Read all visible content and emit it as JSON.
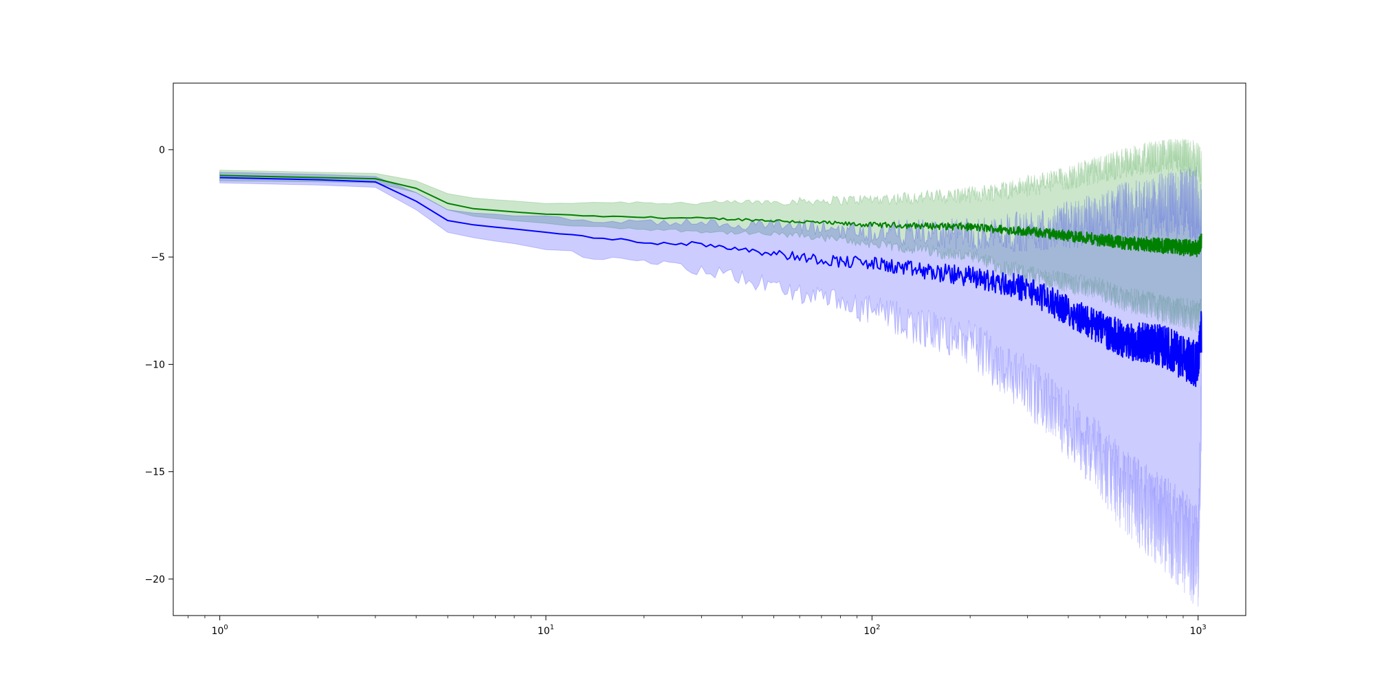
{
  "chart_data": {
    "type": "line",
    "title": "",
    "xlabel": "",
    "ylabel": "",
    "xscale": "log",
    "xlim": [
      0.72,
      1400
    ],
    "ylim": [
      -21.7,
      3.1
    ],
    "grid": false,
    "x_ticks": [
      {
        "value": 1,
        "base": "10",
        "exp": "0"
      },
      {
        "value": 10,
        "base": "10",
        "exp": "1"
      },
      {
        "value": 100,
        "base": "10",
        "exp": "2"
      },
      {
        "value": 1000,
        "base": "10",
        "exp": "3"
      }
    ],
    "y_ticks": [
      {
        "value": 0,
        "label": "0"
      },
      {
        "value": -5,
        "label": "−5"
      },
      {
        "value": -10,
        "label": "−10"
      },
      {
        "value": -15,
        "label": "−15"
      },
      {
        "value": -20,
        "label": "−20"
      }
    ],
    "series": [
      {
        "color": "#008000",
        "band_color": "#008000",
        "band_opacity": 0.2,
        "x": [
          1,
          2,
          3,
          4,
          5,
          6,
          8,
          10,
          14,
          20,
          30,
          40,
          60,
          80,
          100,
          150,
          200,
          300,
          400,
          500,
          600,
          700,
          800,
          900,
          1000,
          1024
        ],
        "mean": [
          -1.2,
          -1.3,
          -1.35,
          -1.8,
          -2.5,
          -2.75,
          -2.9,
          -3.0,
          -3.1,
          -3.15,
          -3.2,
          -3.25,
          -3.35,
          -3.45,
          -3.5,
          -3.55,
          -3.6,
          -3.8,
          -4.0,
          -4.2,
          -4.35,
          -4.4,
          -4.5,
          -4.55,
          -4.6,
          -4.2
        ],
        "lower": [
          -1.45,
          -1.5,
          -1.55,
          -2.0,
          -2.8,
          -3.1,
          -3.3,
          -3.45,
          -3.6,
          -3.7,
          -3.8,
          -3.9,
          -4.0,
          -4.2,
          -4.4,
          -4.7,
          -5.0,
          -5.8,
          -6.2,
          -6.5,
          -7.0,
          -7.2,
          -7.5,
          -7.6,
          -7.8,
          -7.5
        ],
        "upper": [
          -0.95,
          -1.05,
          -1.1,
          -1.45,
          -2.05,
          -2.25,
          -2.4,
          -2.5,
          -2.45,
          -2.45,
          -2.5,
          -2.45,
          -2.4,
          -2.35,
          -2.3,
          -2.2,
          -2.1,
          -1.7,
          -1.3,
          -0.9,
          -0.6,
          -0.4,
          -0.3,
          -0.3,
          -0.5,
          -0.8
        ]
      },
      {
        "color": "#0000ff",
        "band_color": "#0000ff",
        "band_opacity": 0.2,
        "x": [
          1,
          2,
          3,
          4,
          5,
          6,
          8,
          10,
          14,
          20,
          30,
          40,
          60,
          80,
          100,
          150,
          200,
          300,
          400,
          500,
          600,
          700,
          800,
          900,
          1000,
          1024
        ],
        "mean": [
          -1.3,
          -1.4,
          -1.5,
          -2.4,
          -3.3,
          -3.5,
          -3.7,
          -3.85,
          -4.1,
          -4.3,
          -4.4,
          -4.6,
          -5.0,
          -5.2,
          -5.3,
          -5.7,
          -5.9,
          -6.5,
          -7.5,
          -8.3,
          -8.9,
          -9.0,
          -9.2,
          -9.7,
          -10.0,
          -8.5
        ],
        "lower": [
          -1.55,
          -1.65,
          -1.75,
          -2.8,
          -3.85,
          -4.1,
          -4.4,
          -4.6,
          -5.0,
          -5.3,
          -5.6,
          -6.0,
          -6.7,
          -7.2,
          -7.5,
          -8.4,
          -9.0,
          -11.0,
          -12.8,
          -14.5,
          -16.0,
          -16.8,
          -17.5,
          -18.2,
          -19.0,
          -12.0
        ],
        "upper": [
          -1.05,
          -1.15,
          -1.25,
          -2.0,
          -2.8,
          -2.95,
          -3.05,
          -3.15,
          -3.3,
          -3.4,
          -3.4,
          -3.45,
          -3.6,
          -3.7,
          -3.8,
          -3.9,
          -3.95,
          -3.8,
          -3.5,
          -3.2,
          -2.8,
          -2.7,
          -2.6,
          -2.5,
          -2.5,
          -3.5
        ]
      }
    ]
  }
}
